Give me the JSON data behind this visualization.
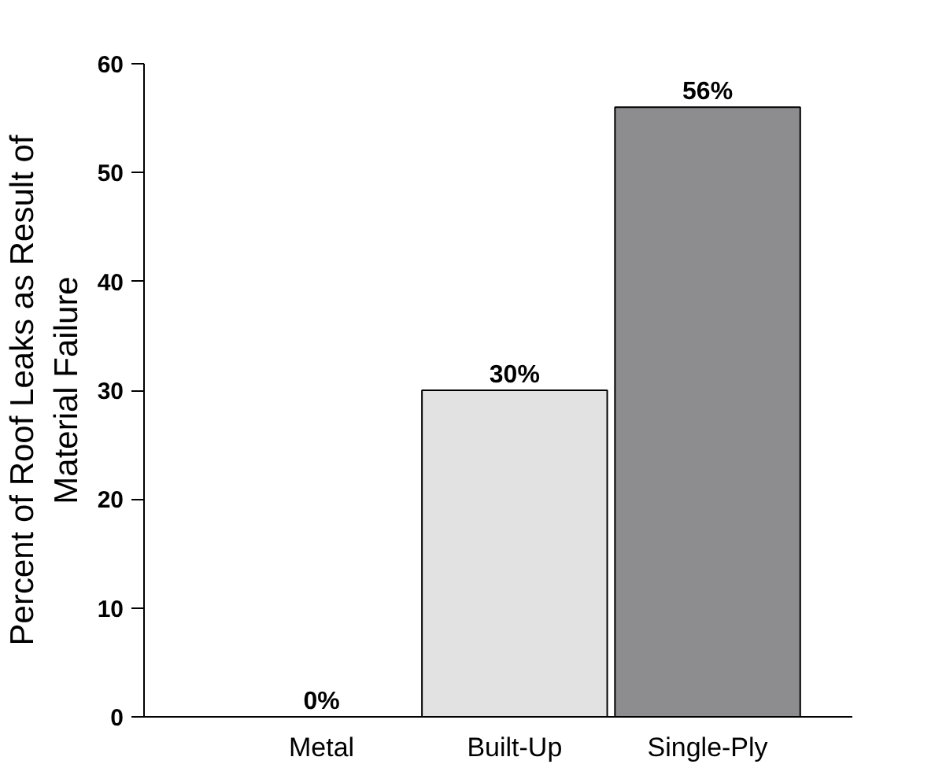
{
  "chart_data": {
    "type": "bar",
    "ylabel": "Percent of Roof Leaks as Result of\nMaterial Failure",
    "categories": [
      "Metal",
      "Built-Up",
      "Single-Ply"
    ],
    "values": [
      0,
      30,
      56
    ],
    "colors": [
      "#ffffff",
      "#e2e2e2",
      "#8d8d90"
    ],
    "value_labels": [
      "0%",
      "30%",
      "56%"
    ],
    "ylim": [
      0,
      60
    ],
    "yticks": [
      0,
      10,
      20,
      30,
      40,
      50,
      60
    ],
    "grid": false
  }
}
